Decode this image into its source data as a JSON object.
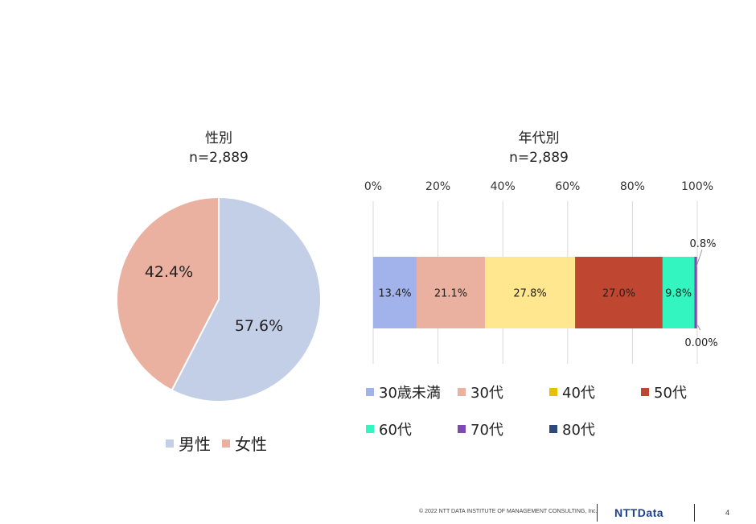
{
  "chart_data": [
    {
      "type": "pie",
      "title": "性別",
      "subtitle": "n=2,889",
      "categories": [
        "男性",
        "女性"
      ],
      "values": [
        57.6,
        42.4
      ],
      "labels": [
        "57.6%",
        "42.4%"
      ],
      "colors": [
        "#c3cfe6",
        "#eab0a0"
      ],
      "legend": "bottom"
    },
    {
      "type": "bar",
      "orientation": "horizontal-stacked-100",
      "title": "年代別",
      "subtitle": "n=2,889",
      "xlim": [
        0,
        100
      ],
      "ticks": [
        "0%",
        "20%",
        "40%",
        "60%",
        "80%",
        "100%"
      ],
      "grid": true,
      "legend": "bottom",
      "series": [
        {
          "name": "30歳未満",
          "value": 13.4,
          "label": "13.4%",
          "color": "#a1b3ea"
        },
        {
          "name": "30代",
          "value": 21.1,
          "label": "21.1%",
          "color": "#eab0a0"
        },
        {
          "name": "40代",
          "value": 27.8,
          "label": "27.8%",
          "color": "#ffe78f"
        },
        {
          "name": "50代",
          "value": 27.0,
          "label": "27.0%",
          "color": "#bf4630"
        },
        {
          "name": "60代",
          "value": 9.8,
          "label": "9.8%",
          "color": "#33f5c0"
        },
        {
          "name": "70代",
          "value": 0.8,
          "label": "0.8%",
          "color": "#7e4ab0"
        },
        {
          "name": "80代",
          "value": 0.0,
          "label": "0.00%",
          "color": "#2e4a7a"
        }
      ],
      "legend_swatch_colors": [
        "#a1b3ea",
        "#eab0a0",
        "#e8c000",
        "#bf4630",
        "#33f5c0",
        "#7e4ab0",
        "#2e4a7a"
      ]
    }
  ],
  "footer": {
    "copyright": "© 2022 NTT DATA INSTITUTE OF MANAGEMENT CONSULTING, Inc.",
    "logo": "NTTData",
    "page": "4"
  }
}
